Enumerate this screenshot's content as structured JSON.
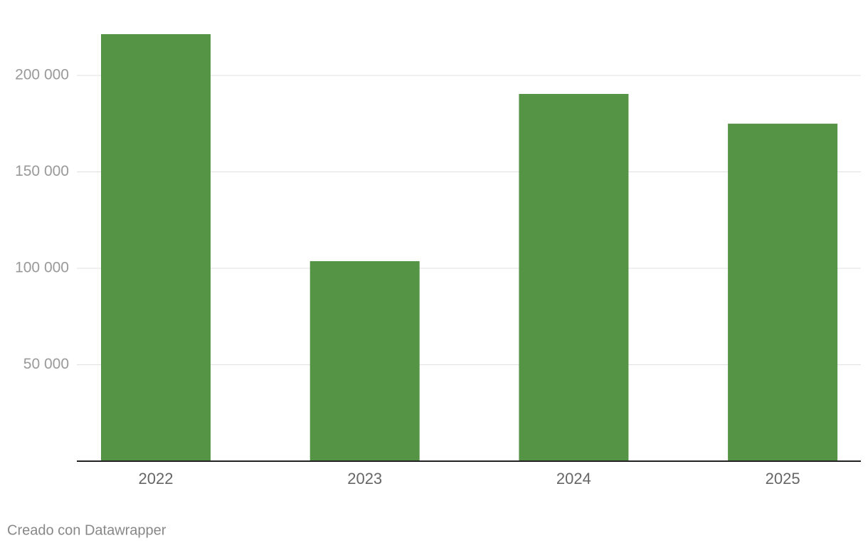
{
  "chart_data": {
    "type": "bar",
    "categories": [
      "2022",
      "2023",
      "2024",
      "2025"
    ],
    "values": [
      221400,
      103700,
      190400,
      175000
    ],
    "color": "#559345",
    "ylim": [
      0,
      221400
    ],
    "yticks": [
      {
        "value": 50000,
        "label": "50 000"
      },
      {
        "value": 100000,
        "label": "100 000"
      },
      {
        "value": 150000,
        "label": "150 000"
      },
      {
        "value": 200000,
        "label": "200 000"
      }
    ],
    "grid": true,
    "footer": "Creado con Datawrapper"
  }
}
